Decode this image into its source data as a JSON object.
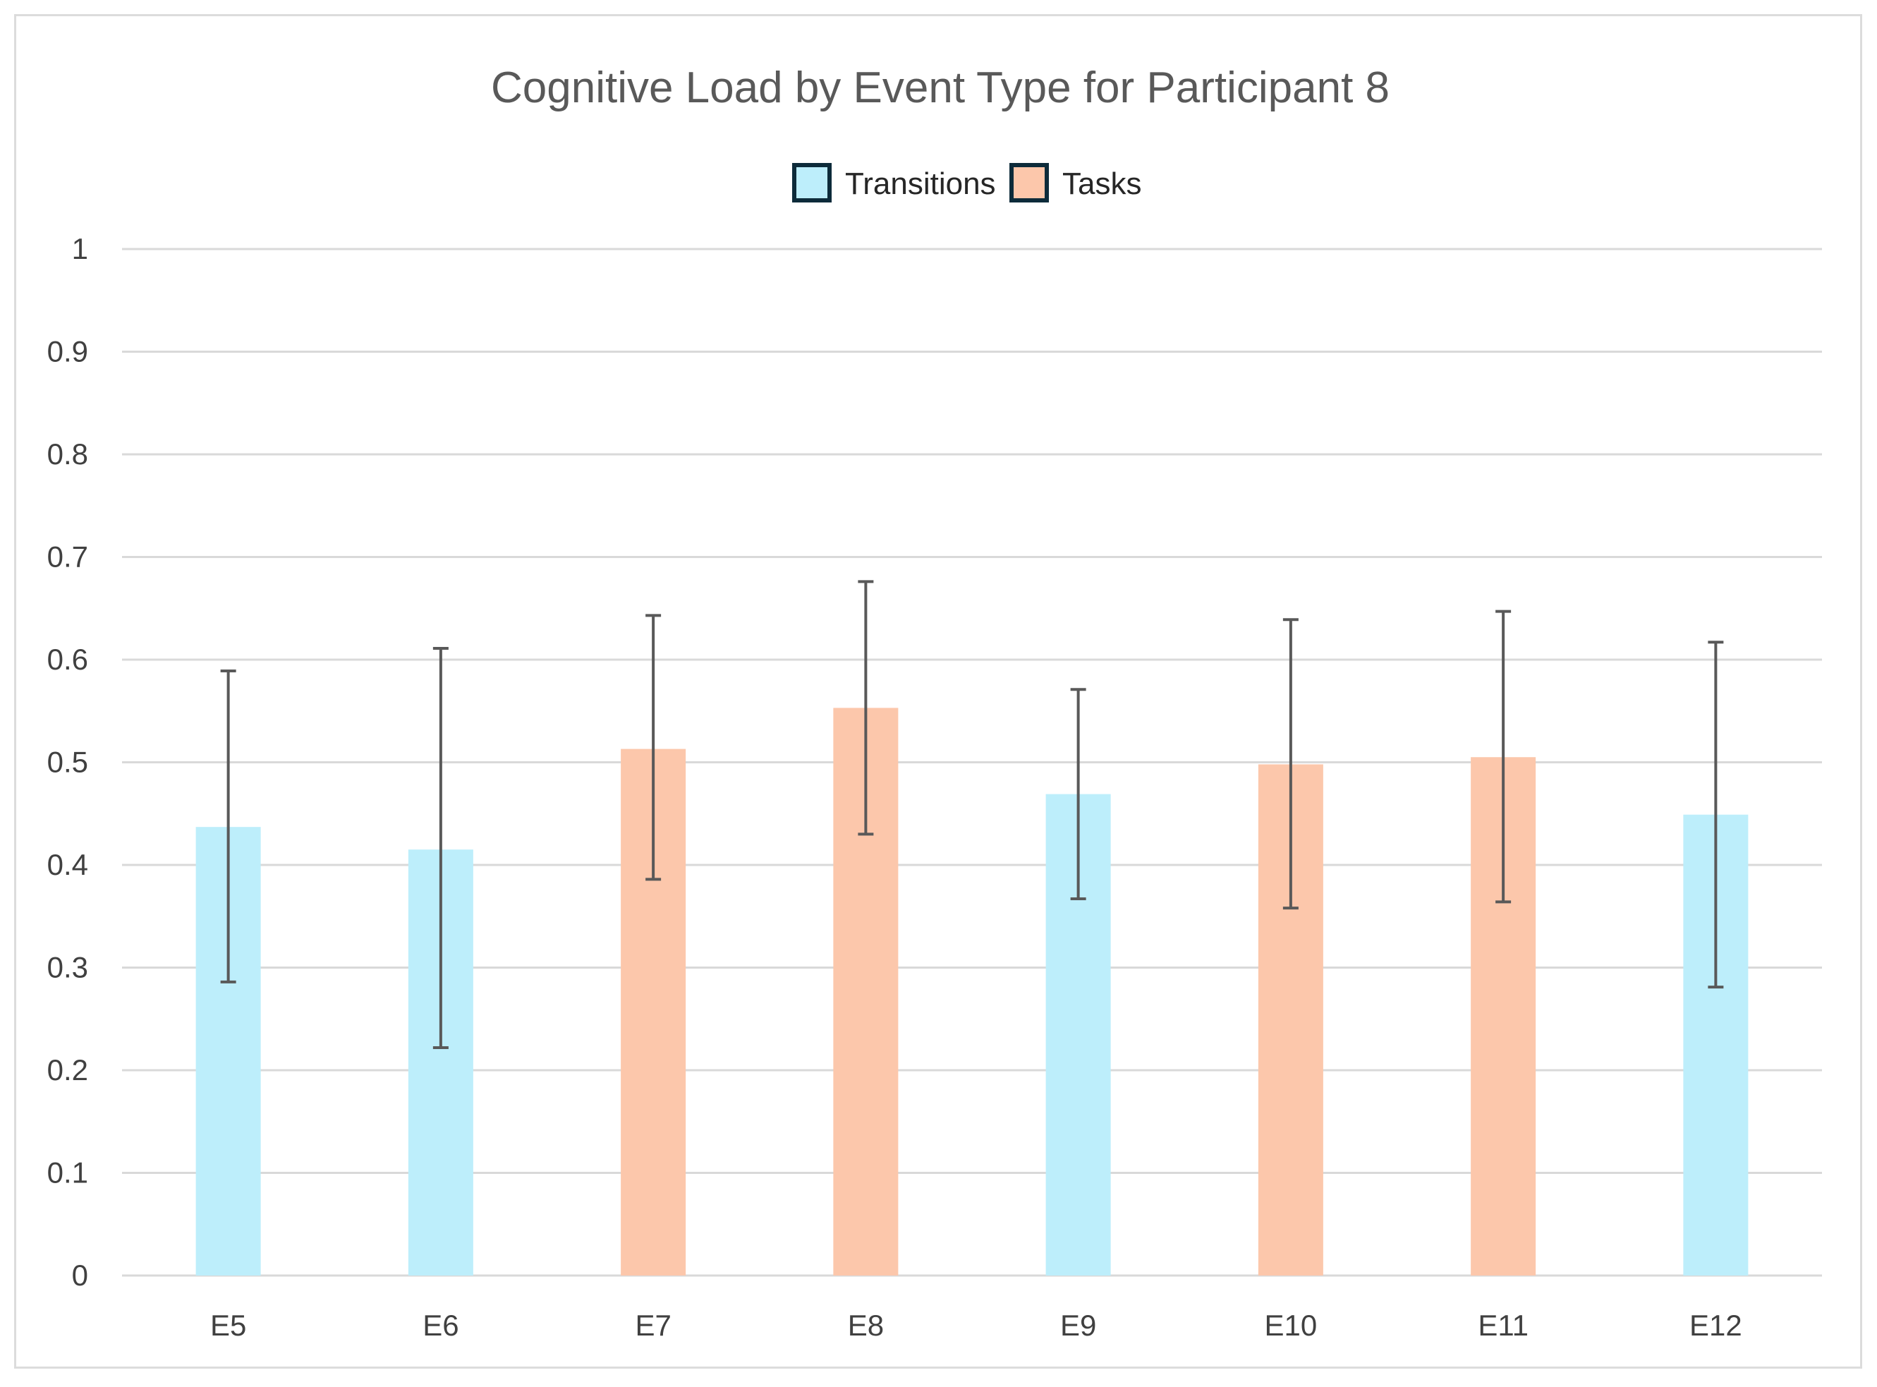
{
  "chart_data": {
    "type": "bar",
    "title": "Cognitive Load by Event Type for Participant 8",
    "xlabel": "",
    "ylabel": "",
    "ylim": [
      0,
      1
    ],
    "yticks": [
      0,
      0.1,
      0.2,
      0.3,
      0.4,
      0.5,
      0.6,
      0.7,
      0.8,
      0.9,
      1
    ],
    "ytick_labels": [
      "0",
      "0.1",
      "0.2",
      "0.3",
      "0.4",
      "0.5",
      "0.6",
      "0.7",
      "0.8",
      "0.9",
      "1"
    ],
    "grid": true,
    "legend_position": "top-center",
    "categories": [
      "E5",
      "E6",
      "E7",
      "E8",
      "E9",
      "E10",
      "E11",
      "E12"
    ],
    "legend": [
      {
        "name": "Transitions",
        "color": "#bdeefb"
      },
      {
        "name": "Tasks",
        "color": "#fcc7ab"
      }
    ],
    "bars": [
      {
        "category": "E5",
        "series": "Transitions",
        "value": 0.437,
        "err_low": 0.286,
        "err_high": 0.589
      },
      {
        "category": "E6",
        "series": "Transitions",
        "value": 0.415,
        "err_low": 0.222,
        "err_high": 0.611
      },
      {
        "category": "E7",
        "series": "Tasks",
        "value": 0.513,
        "err_low": 0.386,
        "err_high": 0.643
      },
      {
        "category": "E8",
        "series": "Tasks",
        "value": 0.553,
        "err_low": 0.43,
        "err_high": 0.676
      },
      {
        "category": "E9",
        "series": "Transitions",
        "value": 0.469,
        "err_low": 0.367,
        "err_high": 0.571
      },
      {
        "category": "E10",
        "series": "Tasks",
        "value": 0.498,
        "err_low": 0.358,
        "err_high": 0.639
      },
      {
        "category": "E11",
        "series": "Tasks",
        "value": 0.505,
        "err_low": 0.364,
        "err_high": 0.647
      },
      {
        "category": "E12",
        "series": "Transitions",
        "value": 0.449,
        "err_low": 0.281,
        "err_high": 0.617
      }
    ],
    "colors": {
      "Transitions": "#bdeefb",
      "Tasks": "#fcc7ab",
      "gridline": "#d9d9d9",
      "error_bar": "#595959",
      "legend_border": "#0d2b3a"
    }
  }
}
